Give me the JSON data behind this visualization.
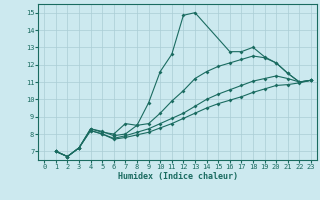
{
  "xlabel": "Humidex (Indice chaleur)",
  "background_color": "#cce9ef",
  "line_color": "#1a6b60",
  "grid_color": "#aacdd5",
  "xlim": [
    -0.5,
    23.5
  ],
  "ylim": [
    6.5,
    15.5
  ],
  "xticks": [
    0,
    1,
    2,
    3,
    4,
    5,
    6,
    7,
    8,
    9,
    10,
    11,
    12,
    13,
    14,
    15,
    16,
    17,
    18,
    19,
    20,
    21,
    22,
    23
  ],
  "yticks": [
    7,
    8,
    9,
    10,
    11,
    12,
    13,
    14,
    15
  ],
  "lines": [
    {
      "x": [
        1,
        2,
        3,
        4,
        5,
        6,
        7,
        8,
        9,
        10,
        11,
        12,
        13,
        16,
        17,
        18,
        19,
        20,
        21,
        22,
        23
      ],
      "y": [
        7.0,
        6.7,
        7.2,
        8.3,
        8.1,
        8.0,
        8.6,
        8.5,
        9.8,
        11.6,
        12.6,
        14.85,
        15.0,
        12.75,
        12.75,
        13.0,
        12.45,
        12.1,
        11.5,
        11.0,
        11.1
      ]
    },
    {
      "x": [
        1,
        2,
        3,
        4,
        5,
        6,
        7,
        8,
        9,
        10,
        11,
        12,
        13,
        14,
        15,
        16,
        17,
        18,
        19,
        20,
        21,
        22,
        23
      ],
      "y": [
        7.0,
        6.7,
        7.2,
        8.3,
        8.15,
        7.9,
        8.0,
        8.5,
        8.6,
        9.2,
        9.9,
        10.5,
        11.2,
        11.6,
        11.9,
        12.1,
        12.3,
        12.5,
        12.4,
        12.1,
        11.5,
        11.0,
        11.1
      ]
    },
    {
      "x": [
        1,
        2,
        3,
        4,
        5,
        6,
        7,
        8,
        9,
        10,
        11,
        12,
        13,
        14,
        15,
        16,
        17,
        18,
        19,
        20,
        21,
        22,
        23
      ],
      "y": [
        7.0,
        6.7,
        7.2,
        8.2,
        8.0,
        7.75,
        7.9,
        8.1,
        8.3,
        8.6,
        8.9,
        9.2,
        9.6,
        10.0,
        10.3,
        10.55,
        10.8,
        11.05,
        11.2,
        11.35,
        11.2,
        11.0,
        11.1
      ]
    },
    {
      "x": [
        1,
        2,
        3,
        4,
        5,
        6,
        7,
        8,
        9,
        10,
        11,
        12,
        13,
        14,
        15,
        16,
        17,
        18,
        19,
        20,
        21,
        22,
        23
      ],
      "y": [
        7.0,
        6.7,
        7.2,
        8.2,
        8.0,
        7.7,
        7.8,
        7.95,
        8.1,
        8.35,
        8.6,
        8.9,
        9.2,
        9.5,
        9.75,
        9.95,
        10.15,
        10.4,
        10.6,
        10.8,
        10.85,
        10.95,
        11.1
      ]
    }
  ]
}
